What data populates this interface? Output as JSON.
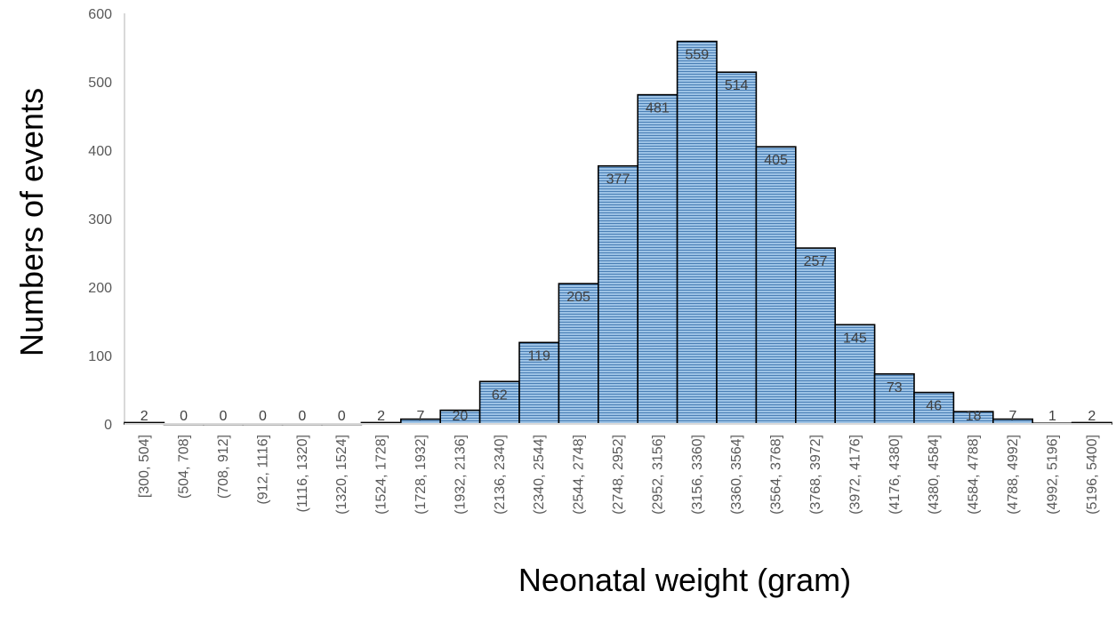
{
  "chart_data": {
    "type": "bar",
    "title": "",
    "xlabel": "Neonatal weight (gram)",
    "ylabel": "Numbers of events",
    "categories": [
      "[300, 504]",
      "(504, 708]",
      "(708, 912]",
      "(912, 1116]",
      "(1116, 1320]",
      "(1320, 1524]",
      "(1524, 1728]",
      "(1728, 1932]",
      "(1932, 2136]",
      "(2136, 2340]",
      "(2340, 2544]",
      "(2544, 2748]",
      "(2748, 2952]",
      "(2952, 3156]",
      "(3156, 3360]",
      "(3360, 3564]",
      "(3564, 3768]",
      "(3768, 3972]",
      "(3972, 4176]",
      "(4176, 4380]",
      "(4380, 4584]",
      "(4584, 4788]",
      "(4788, 4992]",
      "(4992, 5196]",
      "(5196, 5400]"
    ],
    "values": [
      2,
      0,
      0,
      0,
      0,
      0,
      2,
      7,
      20,
      62,
      119,
      205,
      377,
      481,
      559,
      514,
      405,
      257,
      145,
      73,
      46,
      18,
      7,
      1,
      2
    ],
    "ylim": [
      0,
      600
    ],
    "yticks": [
      0,
      100,
      200,
      300,
      400,
      500,
      600
    ],
    "grid": false,
    "legend": "none",
    "colors": {
      "bar_fill": "#9DC3E6",
      "bar_stripe": "#4A7FB5",
      "bar_edge": "#000000",
      "axis": "#D9D9D9"
    }
  }
}
